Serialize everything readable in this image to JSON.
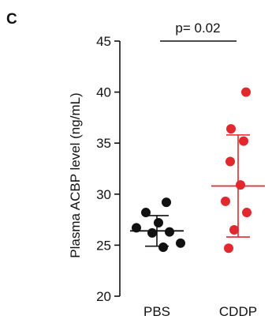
{
  "panel_label": "C",
  "chart_data": {
    "type": "scatter",
    "ylabel": "Plasma ACBP level (ng/mL)",
    "xlabel": "",
    "ylim": [
      20,
      45
    ],
    "yticks": [
      "20",
      "25",
      "30",
      "35",
      "40",
      "45"
    ],
    "categories": [
      "PBS",
      "CDDP"
    ],
    "series": [
      {
        "name": "PBS",
        "color": "#111111",
        "values": [
          29.2,
          28.2,
          27.2,
          26.7,
          26.3,
          26.2,
          25.2,
          24.8
        ],
        "mean": 26.4,
        "sd_upper": 27.9,
        "sd_lower": 24.9
      },
      {
        "name": "CDDP",
        "color": "#e0282e",
        "values": [
          40.0,
          36.4,
          35.2,
          33.2,
          30.9,
          29.3,
          28.2,
          26.5,
          24.7
        ],
        "mean": 30.8,
        "sd_upper": 35.8,
        "sd_lower": 25.8
      }
    ],
    "annotations": [
      {
        "text": "p= 0.02",
        "between": [
          "PBS",
          "CDDP"
        ]
      }
    ],
    "grid": false,
    "legend": "none"
  }
}
